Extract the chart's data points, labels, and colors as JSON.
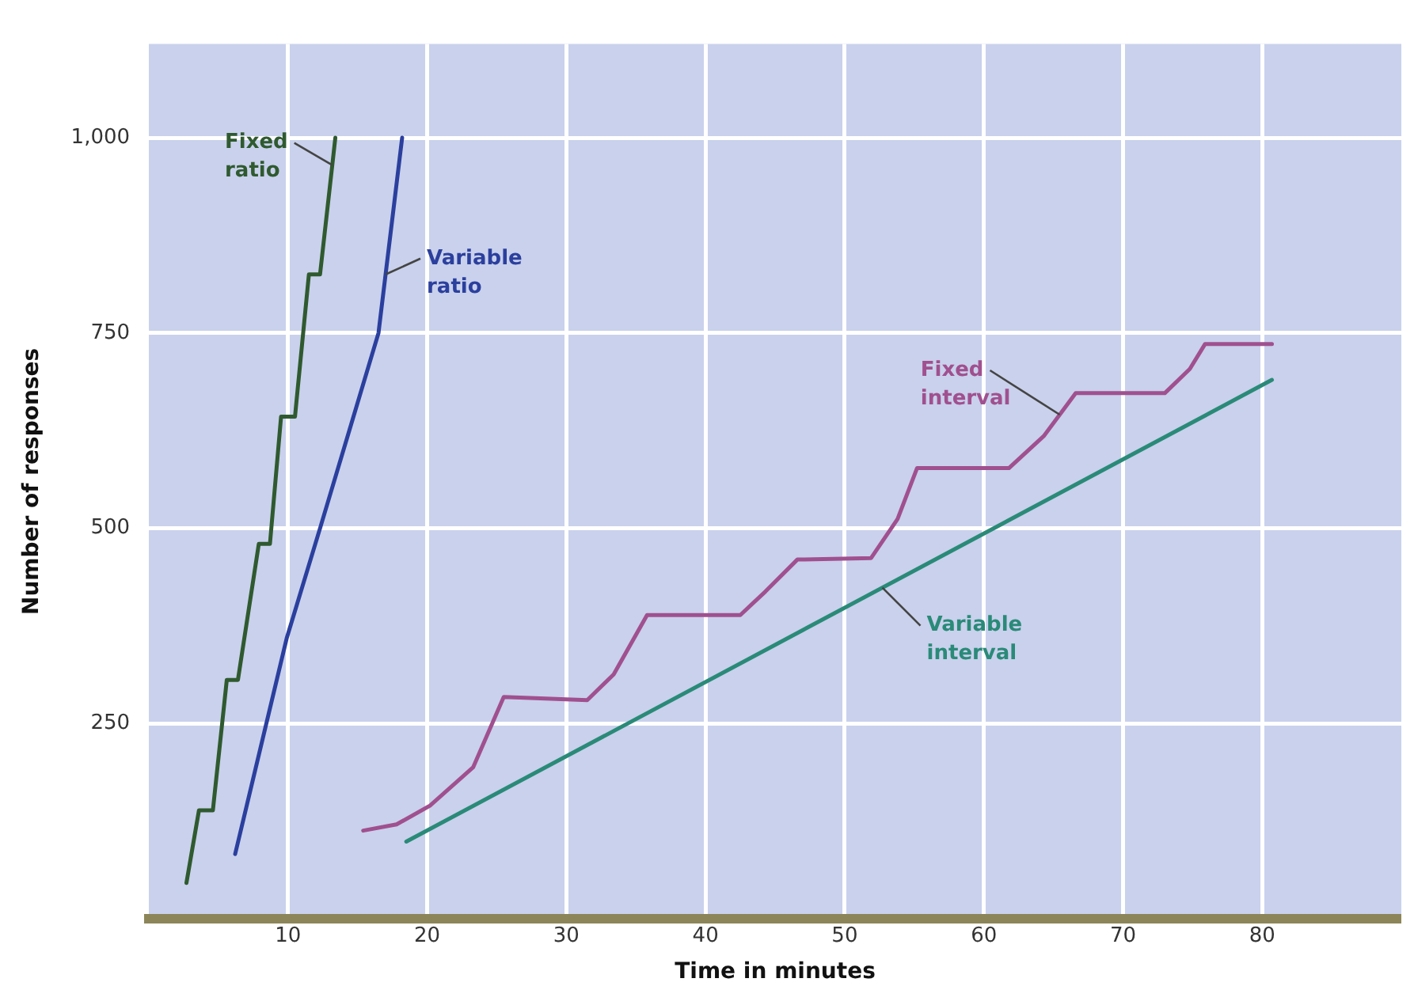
{
  "chart_data": {
    "type": "line",
    "xlabel": "Time in minutes",
    "ylabel": "Number of responses",
    "xlim": [
      0,
      90
    ],
    "ylim": [
      0,
      1120
    ],
    "xticks": [
      10,
      20,
      30,
      40,
      50,
      60,
      70,
      80
    ],
    "yticks": [
      250,
      500,
      750,
      {
        "value": 1000,
        "label": "1,000"
      }
    ],
    "grid": true,
    "legend": false,
    "marker": "none",
    "line_style": "solid",
    "series": [
      {
        "name": "Fixed ratio",
        "color": "#2f5a2f",
        "x": [
          2.7,
          3.6,
          4.6,
          5.6,
          6.4,
          7.9,
          8.7,
          9.5,
          10.5,
          11.5,
          12.3,
          13.4
        ],
        "values": [
          46,
          139,
          139,
          306,
          306,
          480,
          480,
          643,
          643,
          825,
          825,
          1000
        ]
      },
      {
        "name": "Variable ratio",
        "color": "#2b3f9e",
        "x": [
          6.2,
          9.9,
          12.3,
          16.5,
          18.2
        ],
        "values": [
          83,
          359,
          500,
          750,
          1000
        ]
      },
      {
        "name": "Fixed interval",
        "color": "#a0508f",
        "x": [
          15.4,
          17.8,
          20.2,
          23.3,
          25.5,
          31.5,
          33.4,
          35.8,
          42.5,
          44.3,
          46.6,
          51.9,
          53.8,
          55.2,
          61.8,
          64.3,
          66.6,
          73,
          74.8,
          75.9,
          80.7
        ],
        "values": [
          113,
          121,
          145,
          194,
          284,
          280,
          313,
          389,
          389,
          419,
          460,
          462,
          512,
          577,
          577,
          618,
          673,
          673,
          704,
          736,
          736
        ]
      },
      {
        "name": "Variable interval",
        "color": "#2a8a78",
        "x": [
          18.5,
          80.7
        ],
        "values": [
          99,
          690
        ]
      }
    ]
  }
}
